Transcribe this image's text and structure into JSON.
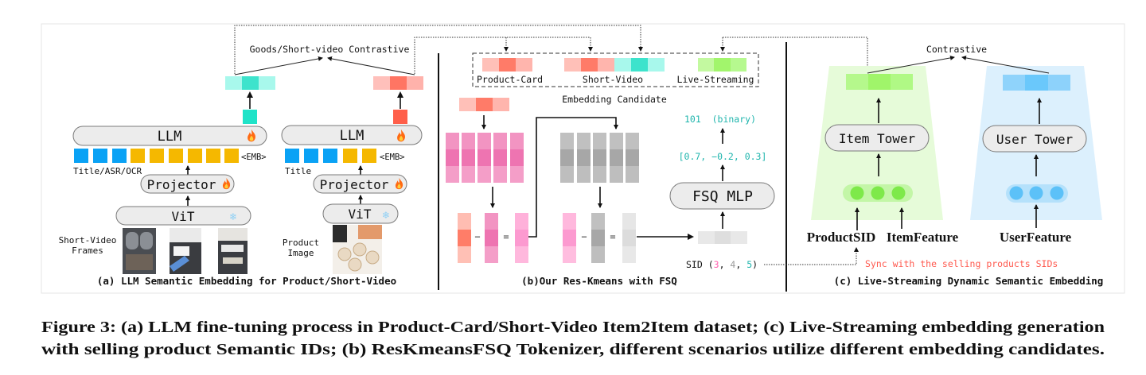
{
  "figure": {
    "panel_a": {
      "contrastive_label": "Goods/Short-video Contrastive",
      "llm_label": "LLM",
      "emb_token": "<EMB>",
      "left_text_label": "Title/ASR/OCR",
      "right_text_label": "Title",
      "projector_label": "Projector",
      "vit_label": "ViT",
      "left_input_label_1": "Short-Video",
      "left_input_label_2": "Frames",
      "right_input_label_1": "Product",
      "right_input_label_2": "Image",
      "caption": "(a) LLM Semantic Embedding for Product/Short-Video",
      "icons": {
        "trainable": "fire-icon",
        "frozen": "snowflake-icon"
      }
    },
    "panel_b": {
      "candidates": [
        "Product-Card",
        "Short-Video",
        "Live-Streaming"
      ],
      "candidate_box_label": "Embedding Candidate",
      "binary_code": "101  (binary)",
      "fsq_vector": "[0.7, −0.2, 0.3]",
      "fsq_label": "FSQ MLP",
      "sid_prefix": "SID (",
      "sid_values": [
        "3",
        "4",
        "5"
      ],
      "sid_sep": ", ",
      "sid_suffix": ")",
      "caption": "(b)Our Res-Kmeans with FSQ"
    },
    "panel_c": {
      "contrastive_label": "Contrastive",
      "item_tower_label": "Item Tower",
      "user_tower_label": "User Tower",
      "product_sid_label": "ProductSID",
      "item_feature_label": "ItemFeature",
      "user_feature_label": "UserFeature",
      "sync_note": "Sync with the selling products SIDs",
      "caption": "(c) Live-Streaming Dynamic Semantic Embedding"
    },
    "caption_line_1": "Figure 3: (a) LLM fine-tuning process in Product-Card/Short-Video Item2Item dataset; (c) Live-Streaming embedding generation",
    "caption_line_2": "with selling product Semantic IDs; (b) ResKmeansFSQ Tokenizer, different scenarios utilize different embedding candidates."
  },
  "colors": {
    "teal": "#3de3cc",
    "teal_light": "#a8f8ec",
    "red": "#ff7563",
    "red_light": "#ffbfb8",
    "green": "#a0f56a",
    "green_light": "#b8f990",
    "blue": "#6ac8fb",
    "blue_light": "#90d4fb",
    "token_blue": "#0aa2f5",
    "token_yellow": "#f5b800",
    "code_accent": "#1fb5ad",
    "sid_pink": "#ff5fae",
    "sync_red": "#ff5a4f"
  }
}
